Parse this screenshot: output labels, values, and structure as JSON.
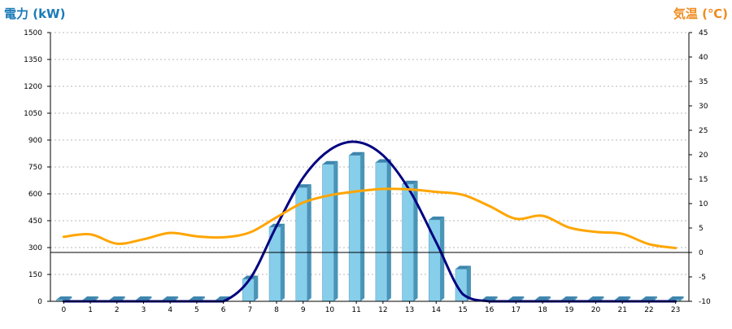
{
  "chart_data": {
    "type": "bar",
    "categories": [
      "0",
      "1",
      "2",
      "3",
      "4",
      "5",
      "6",
      "7",
      "8",
      "9",
      "10",
      "11",
      "12",
      "13",
      "14",
      "15",
      "16",
      "17",
      "18",
      "19",
      "20",
      "21",
      "22",
      "23"
    ],
    "y_left_label": "電力 (kW)",
    "y_right_label": "気温 (℃)",
    "y_left_lim": [
      0,
      1500
    ],
    "y_left_ticks": [
      "0",
      "150",
      "300",
      "450",
      "600",
      "750",
      "900",
      "1050",
      "1200",
      "1350",
      "1500"
    ],
    "y_right_lim": [
      -10,
      45
    ],
    "y_right_ticks": [
      "-10",
      "-5",
      "0",
      "5",
      "10",
      "15",
      "20",
      "25",
      "30",
      "35",
      "40",
      "45"
    ],
    "grid": true,
    "series": [
      {
        "kind": "bar",
        "axis": "left",
        "color": "#87ceeb",
        "values": [
          0,
          0,
          0,
          0,
          0,
          0,
          0,
          125,
          415,
          635,
          765,
          815,
          775,
          655,
          455,
          180,
          0,
          0,
          0,
          0,
          0,
          0,
          0,
          0
        ]
      },
      {
        "kind": "line",
        "axis": "left",
        "color": "#000080",
        "values": [
          -10,
          -10,
          -10,
          -10,
          -10,
          -10,
          -10,
          125,
          420,
          690,
          845,
          890,
          815,
          620,
          330,
          40,
          -10,
          -10,
          -10,
          -10,
          -10,
          -10,
          -10,
          -10
        ]
      },
      {
        "kind": "line",
        "axis": "right",
        "color": "#ffa500",
        "values": [
          3.2,
          3.7,
          1.8,
          2.7,
          4.0,
          3.3,
          3.1,
          4.1,
          7.2,
          10.2,
          11.7,
          12.5,
          13.0,
          12.9,
          12.4,
          11.8,
          9.5,
          6.9,
          7.5,
          5.1,
          4.2,
          3.8,
          1.7,
          0.9
        ]
      }
    ],
    "reference_line": {
      "axis": "right",
      "value": 0
    }
  }
}
